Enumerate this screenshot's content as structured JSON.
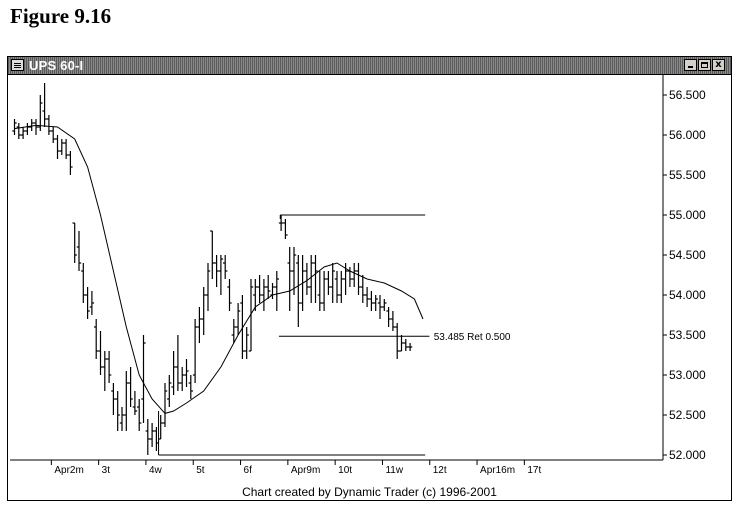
{
  "figure_title": "Figure 9.16",
  "window": {
    "title": "UPS 60-I",
    "minimize_icon": "minimize-icon",
    "maximize_icon": "maximize-icon",
    "close_icon": "close-icon",
    "close_label": "x"
  },
  "credit": "Chart created by Dynamic Trader (c) 1996-2001",
  "chart_data": {
    "type": "bar",
    "ylim": [
      52.0,
      56.5
    ],
    "y_ticks": [
      "56.500",
      "56.000",
      "55.500",
      "55.000",
      "54.500",
      "54.000",
      "53.500",
      "53.000",
      "52.500",
      "52.000"
    ],
    "x_tick_labels": [
      "Apr2m",
      "3t",
      "4w",
      "5t",
      "6f",
      "Apr9m",
      "10t",
      "11w",
      "12t",
      "Apr16m",
      "17t"
    ],
    "x_tick_positions": [
      9.5,
      20.5,
      31.5,
      42.5,
      53.5,
      64.5,
      75.5,
      86.5,
      97.5,
      108.5,
      119.5
    ],
    "x_range": [
      0,
      153
    ],
    "ohlc": [
      [
        56.05,
        56.2,
        56.0,
        56.15
      ],
      [
        56.1,
        56.15,
        55.95,
        56.0
      ],
      [
        56.0,
        56.1,
        55.95,
        56.05
      ],
      [
        56.05,
        56.15,
        56.0,
        56.1
      ],
      [
        56.1,
        56.2,
        56.05,
        56.15
      ],
      [
        56.15,
        56.2,
        56.0,
        56.1
      ],
      [
        56.1,
        56.5,
        56.05,
        56.4
      ],
      [
        56.3,
        56.65,
        56.1,
        56.2
      ],
      [
        56.2,
        56.25,
        56.0,
        56.05
      ],
      [
        56.05,
        56.1,
        55.9,
        55.95
      ],
      [
        55.95,
        56.0,
        55.7,
        55.8
      ],
      [
        55.8,
        55.95,
        55.75,
        55.9
      ],
      [
        55.9,
        55.95,
        55.7,
        55.75
      ],
      [
        55.75,
        55.8,
        55.5,
        55.6
      ],
      [
        54.9,
        54.9,
        54.4,
        54.5
      ],
      [
        54.6,
        54.8,
        54.3,
        54.4
      ],
      [
        54.3,
        54.4,
        53.9,
        54.0
      ],
      [
        54.0,
        54.1,
        53.7,
        53.8
      ],
      [
        53.85,
        54.05,
        53.75,
        53.9
      ],
      [
        53.6,
        53.7,
        53.2,
        53.3
      ],
      [
        53.3,
        53.55,
        53.0,
        53.1
      ],
      [
        53.1,
        53.3,
        52.8,
        53.2
      ],
      [
        53.2,
        53.3,
        52.9,
        53.0
      ],
      [
        52.8,
        52.9,
        52.5,
        52.7
      ],
      [
        52.7,
        52.8,
        52.3,
        52.5
      ],
      [
        52.4,
        52.6,
        52.3,
        52.5
      ],
      [
        52.5,
        53.05,
        52.3,
        52.9
      ],
      [
        52.9,
        53.1,
        52.6,
        52.7
      ],
      [
        52.6,
        52.8,
        52.5,
        52.55
      ],
      [
        52.6,
        52.7,
        52.3,
        52.4
      ],
      [
        52.7,
        53.5,
        52.4,
        53.4
      ],
      [
        52.3,
        52.45,
        52.0,
        52.2
      ],
      [
        52.2,
        52.4,
        52.1,
        52.3
      ],
      [
        52.3,
        52.35,
        52.05,
        52.15
      ],
      [
        52.2,
        52.5,
        52.2,
        52.4
      ],
      [
        52.4,
        52.9,
        52.35,
        52.8
      ],
      [
        52.7,
        53.0,
        52.6,
        52.9
      ],
      [
        52.85,
        53.3,
        52.75,
        53.1
      ],
      [
        53.1,
        53.5,
        52.8,
        52.9
      ],
      [
        52.9,
        53.1,
        52.8,
        53.0
      ],
      [
        53.0,
        53.2,
        52.85,
        53.05
      ],
      [
        52.9,
        53.0,
        52.7,
        52.8
      ],
      [
        53.0,
        53.7,
        52.9,
        53.6
      ],
      [
        53.6,
        53.85,
        53.4,
        53.7
      ],
      [
        53.7,
        54.1,
        53.5,
        54.0
      ],
      [
        54.0,
        54.4,
        53.8,
        54.3
      ],
      [
        54.8,
        54.8,
        54.2,
        54.4
      ],
      [
        54.4,
        54.5,
        54.1,
        54.3
      ],
      [
        54.3,
        54.5,
        54.0,
        54.45
      ],
      [
        54.4,
        54.5,
        54.2,
        54.3
      ],
      [
        54.1,
        54.2,
        53.8,
        53.9
      ],
      [
        53.5,
        53.7,
        53.4,
        53.6
      ],
      [
        53.6,
        53.9,
        53.5,
        53.8
      ],
      [
        53.9,
        54.0,
        53.2,
        53.3
      ],
      [
        53.3,
        53.6,
        53.2,
        53.5
      ],
      [
        53.3,
        54.2,
        53.3,
        54.1
      ],
      [
        54.0,
        54.2,
        53.8,
        54.1
      ],
      [
        54.1,
        54.25,
        53.9,
        54.0
      ],
      [
        54.0,
        54.2,
        53.8,
        54.1
      ],
      [
        54.1,
        54.25,
        53.95,
        54.05
      ],
      [
        54.0,
        54.15,
        53.95,
        54.1
      ],
      [
        54.1,
        54.3,
        53.8,
        54.2
      ],
      [
        54.9,
        55.0,
        54.8,
        54.9
      ],
      [
        54.9,
        54.95,
        54.7,
        54.75
      ],
      [
        54.4,
        54.6,
        53.8,
        54.3
      ],
      [
        54.3,
        54.6,
        54.0,
        54.5
      ],
      [
        54.4,
        54.5,
        53.6,
        53.9
      ],
      [
        53.9,
        54.5,
        53.8,
        54.3
      ],
      [
        54.3,
        54.4,
        54.0,
        54.1
      ],
      [
        54.1,
        54.5,
        53.9,
        54.4
      ],
      [
        54.4,
        54.5,
        53.9,
        54.3
      ],
      [
        54.0,
        54.3,
        53.8,
        53.9
      ],
      [
        53.9,
        54.3,
        53.8,
        54.2
      ],
      [
        54.2,
        54.3,
        54.0,
        54.1
      ],
      [
        54.1,
        54.4,
        53.9,
        54.3
      ],
      [
        54.2,
        54.3,
        53.9,
        54.0
      ],
      [
        54.0,
        54.3,
        53.9,
        54.2
      ],
      [
        54.2,
        54.4,
        54.0,
        54.3
      ],
      [
        54.3,
        54.35,
        54.1,
        54.2
      ],
      [
        54.2,
        54.4,
        54.1,
        54.3
      ],
      [
        54.3,
        54.4,
        54.0,
        54.1
      ],
      [
        54.1,
        54.25,
        53.9,
        54.0
      ],
      [
        54.0,
        54.1,
        53.85,
        53.95
      ],
      [
        53.95,
        54.05,
        53.8,
        53.9
      ],
      [
        53.9,
        54.0,
        53.8,
        53.95
      ],
      [
        53.9,
        54.0,
        53.7,
        53.85
      ],
      [
        53.85,
        53.95,
        53.8,
        53.9
      ],
      [
        53.8,
        53.85,
        53.6,
        53.7
      ],
      [
        53.7,
        53.8,
        53.55,
        53.6
      ],
      [
        53.6,
        53.65,
        53.2,
        53.3
      ],
      [
        53.3,
        53.5,
        53.3,
        53.4
      ],
      [
        53.4,
        53.45,
        53.3,
        53.35
      ],
      [
        53.35,
        53.4,
        53.3,
        53.35
      ]
    ],
    "ma": [
      [
        0,
        56.08
      ],
      [
        5,
        56.12
      ],
      [
        10,
        56.1
      ],
      [
        14,
        55.95
      ],
      [
        17,
        55.6
      ],
      [
        20,
        55.0
      ],
      [
        23,
        54.3
      ],
      [
        26,
        53.6
      ],
      [
        29,
        53.0
      ],
      [
        32,
        52.7
      ],
      [
        35,
        52.52
      ],
      [
        37,
        52.55
      ],
      [
        40,
        52.65
      ],
      [
        44,
        52.8
      ],
      [
        48,
        53.1
      ],
      [
        52,
        53.5
      ],
      [
        56,
        53.85
      ],
      [
        60,
        54.0
      ],
      [
        64,
        54.05
      ],
      [
        68,
        54.18
      ],
      [
        72,
        54.35
      ],
      [
        75,
        54.4
      ],
      [
        78,
        54.3
      ],
      [
        82,
        54.2
      ],
      [
        86,
        54.15
      ],
      [
        90,
        54.05
      ],
      [
        93,
        53.95
      ],
      [
        95,
        53.7
      ]
    ],
    "annotations": [
      {
        "type": "hline",
        "y": 55.0,
        "x1": 61.8,
        "x2": 95.5
      },
      {
        "type": "vline",
        "x": 61.8,
        "y1": 54.95,
        "y2": 55.0
      },
      {
        "type": "hline",
        "y": 52.0,
        "x1": 33.5,
        "x2": 95.5
      },
      {
        "type": "vline",
        "x": 33.5,
        "y1": 52.0,
        "y2": 52.55
      },
      {
        "type": "hline",
        "y": 53.485,
        "x1": 61.5,
        "x2": 96.5
      },
      {
        "type": "label",
        "y": 53.485,
        "text": "53.485 Ret 0.500"
      }
    ]
  }
}
